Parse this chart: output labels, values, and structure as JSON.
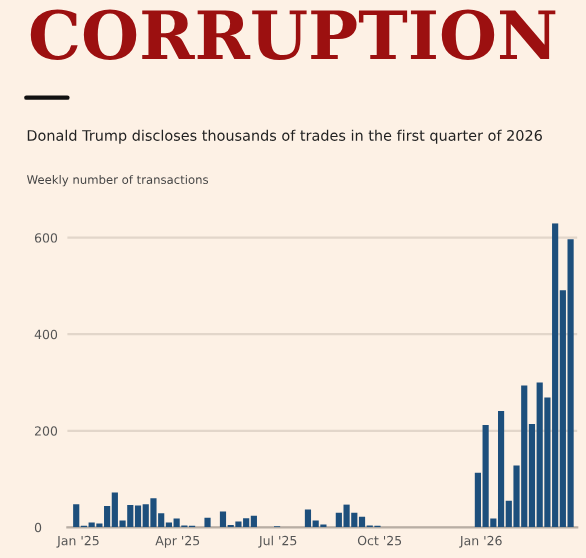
{
  "chart_data": {
    "type": "bar",
    "title": "CORRUPTION",
    "subtitle": "Donald Trump discloses thousands of trades in the first quarter of 2026",
    "ylabel": "Weekly number of transactions",
    "x": [
      "2024-12-30",
      "2025-01-06",
      "2025-01-13",
      "2025-01-20",
      "2025-01-27",
      "2025-02-03",
      "2025-02-10",
      "2025-02-17",
      "2025-02-24",
      "2025-03-03",
      "2025-03-10",
      "2025-03-17",
      "2025-03-24",
      "2025-03-31",
      "2025-04-07",
      "2025-04-14",
      "2025-04-21",
      "2025-04-28",
      "2025-05-05",
      "2025-05-12",
      "2025-05-19",
      "2025-05-26",
      "2025-06-02",
      "2025-06-09",
      "2025-06-16",
      "2025-06-23",
      "2025-06-30",
      "2025-07-07",
      "2025-07-14",
      "2025-07-21",
      "2025-07-28",
      "2025-08-04",
      "2025-08-11",
      "2025-08-18",
      "2025-08-25",
      "2025-09-01",
      "2025-09-08",
      "2025-09-15",
      "2025-09-22",
      "2025-09-29",
      "2025-10-06",
      "2025-10-13",
      "2025-10-20",
      "2025-10-27",
      "2025-11-03",
      "2025-11-10",
      "2025-11-17",
      "2025-11-24",
      "2025-12-01",
      "2025-12-08",
      "2025-12-15",
      "2025-12-22",
      "2025-12-29",
      "2026-01-05",
      "2026-01-12",
      "2026-01-19",
      "2026-01-26",
      "2026-02-02",
      "2026-02-09",
      "2026-02-16",
      "2026-02-23",
      "2026-03-02",
      "2026-03-09",
      "2026-03-16",
      "2026-03-23"
    ],
    "values": [
      48,
      3,
      10,
      8,
      44,
      72,
      14,
      46,
      45,
      48,
      60,
      29,
      10,
      18,
      4,
      3,
      0,
      20,
      0,
      33,
      5,
      12,
      19,
      24,
      0,
      0,
      2,
      0,
      0,
      0,
      37,
      14,
      6,
      0,
      30,
      47,
      30,
      22,
      4,
      3,
      0,
      0,
      0,
      0,
      0,
      0,
      0,
      0,
      0,
      0,
      0,
      0,
      113,
      212,
      18,
      241,
      55,
      128,
      294,
      214,
      300,
      269,
      630,
      491,
      597
    ],
    "color": "#1d4f7c",
    "xlim": [
      "2024-12-22",
      "2026-03-29"
    ],
    "xticks": [
      {
        "value": "2025-01-01",
        "label": "Jan '25"
      },
      {
        "value": "2025-04-01",
        "label": "Apr '25"
      },
      {
        "value": "2025-07-01",
        "label": "Jul '25"
      },
      {
        "value": "2025-10-01",
        "label": "Oct '25"
      },
      {
        "value": "2026-01-01",
        "label": "Jan '26"
      }
    ],
    "ylim": [
      0,
      630
    ],
    "yticks": [
      0,
      200,
      400,
      600
    ],
    "grid": "y",
    "legend": false
  }
}
